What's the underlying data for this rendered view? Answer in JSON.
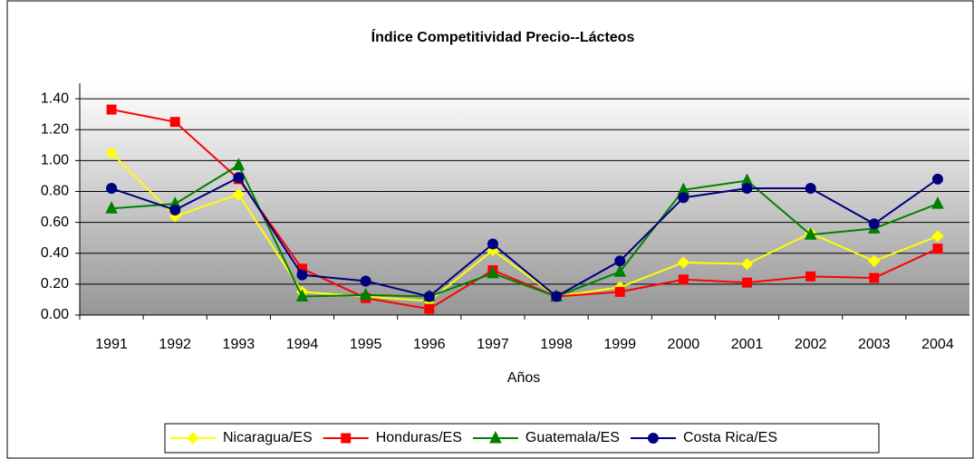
{
  "chart_data": {
    "type": "line",
    "title": "Índice Competitividad Precio--Lácteos",
    "x_label": "Años",
    "categories": [
      "1991",
      "1992",
      "1993",
      "1994",
      "1995",
      "1996",
      "1997",
      "1998",
      "1999",
      "2000",
      "2001",
      "2002",
      "2003",
      "2004"
    ],
    "series": [
      {
        "name": "Nicaragua/ES",
        "color": "#ffff00",
        "marker": "diamond",
        "values": [
          1.05,
          0.64,
          0.78,
          0.15,
          0.12,
          0.09,
          0.42,
          0.12,
          0.18,
          0.34,
          0.33,
          0.53,
          0.35,
          0.51
        ]
      },
      {
        "name": "Honduras/ES",
        "color": "#ff0000",
        "marker": "square",
        "values": [
          1.33,
          1.25,
          0.88,
          0.3,
          0.11,
          0.04,
          0.29,
          0.12,
          0.15,
          0.23,
          0.21,
          0.25,
          0.24,
          0.43
        ]
      },
      {
        "name": "Guatemala/ES",
        "color": "#008000",
        "marker": "triangle",
        "values": [
          0.69,
          0.72,
          0.97,
          0.12,
          0.13,
          0.12,
          0.27,
          0.12,
          0.28,
          0.81,
          0.87,
          0.52,
          0.56,
          0.72
        ]
      },
      {
        "name": "Costa Rica/ES",
        "color": "#000080",
        "marker": "circle",
        "values": [
          0.82,
          0.68,
          0.89,
          0.26,
          0.22,
          0.12,
          0.46,
          0.12,
          0.35,
          0.76,
          0.82,
          0.82,
          0.59,
          0.88
        ]
      }
    ],
    "ylim": [
      0,
      1.5
    ],
    "yticks": [
      {
        "value": 0,
        "label": "0.00"
      },
      {
        "value": 0.2,
        "label": "0.20"
      },
      {
        "value": 0.4,
        "label": "0.40"
      },
      {
        "value": 0.6,
        "label": "0.60"
      },
      {
        "value": 0.8,
        "label": "0.80"
      },
      {
        "value": 1,
        "label": "1.00"
      },
      {
        "value": 1.2,
        "label": "1.20"
      },
      {
        "value": 1.4,
        "label": "1.40"
      }
    ],
    "grid": true,
    "legend": "bottom"
  }
}
